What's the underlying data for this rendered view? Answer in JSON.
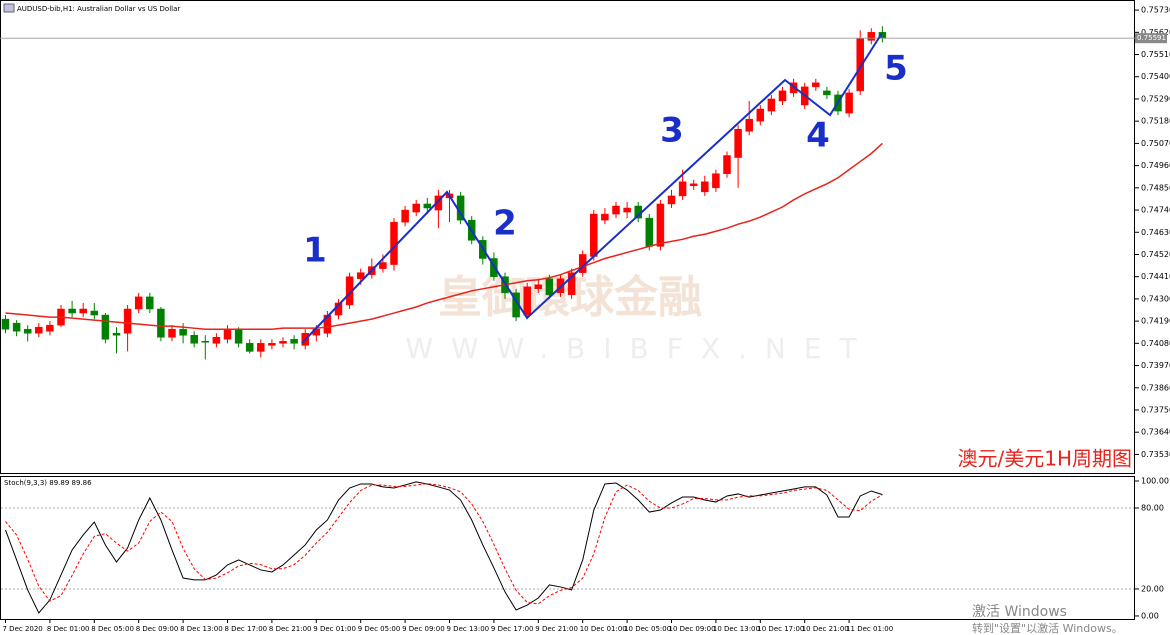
{
  "chart_data": [
    {
      "type": "candlestick",
      "title": "AUDUSD-bib,H1:  Australian Dollar vs US Dollar",
      "categories": [
        "7 Dec 2020",
        null,
        null,
        null,
        "8 Dec 01:00",
        null,
        null,
        null,
        "8 Dec 05:00",
        null,
        null,
        null,
        "8 Dec 09:00",
        null,
        null,
        null,
        "8 Dec 13:00",
        null,
        null,
        null,
        "8 Dec 17:00",
        null,
        null,
        null,
        "8 Dec 21:00",
        null,
        null,
        null,
        "9 Dec 01:00",
        null,
        null,
        null,
        "9 Dec 05:00",
        null,
        null,
        null,
        "9 Dec 09:00",
        null,
        null,
        null,
        "9 Dec 13:00",
        null,
        null,
        null,
        "9 Dec 17:00",
        null,
        null,
        null,
        "9 Dec 21:00",
        null,
        null,
        null,
        "10 Dec 01:00",
        null,
        null,
        null,
        "10 Dec 05:00",
        null,
        null,
        null,
        "10 Dec 09:00",
        null,
        null,
        null,
        "10 Dec 13:00",
        null,
        null,
        null,
        "10 Dec 17:00",
        null,
        null,
        null,
        "10 Dec 21:00",
        null,
        null,
        null,
        "11 Dec 01:00",
        null,
        null,
        null
      ],
      "open": [
        0.742,
        0.7418,
        0.7415,
        0.7413,
        0.7414,
        0.7417,
        0.7425,
        0.7423,
        0.7424,
        0.7422,
        0.7413,
        0.7413,
        0.7425,
        0.7431,
        0.7425,
        0.7411,
        0.7415,
        0.7412,
        0.7409,
        0.7408,
        0.741,
        0.7415,
        0.7408,
        0.7404,
        0.7407,
        0.7408,
        0.741,
        0.7407,
        0.7412,
        0.7413,
        0.7422,
        0.7427,
        0.744,
        0.7442,
        0.7445,
        0.7447,
        0.7468,
        0.7473,
        0.7477,
        0.7474,
        0.748,
        0.7481,
        0.7469,
        0.7459,
        0.745,
        0.7441,
        0.7433,
        0.7422,
        0.7435,
        0.744,
        0.7433,
        0.7432,
        0.7443,
        0.7451,
        0.7469,
        0.7472,
        0.7473,
        0.7476,
        0.747,
        0.7456,
        0.7477,
        0.7481,
        0.7486,
        0.7483,
        0.7485,
        0.7492,
        0.75,
        0.7513,
        0.7518,
        0.7523,
        0.7528,
        0.7532,
        0.7526,
        0.7535,
        0.7533,
        0.7531,
        0.7522,
        0.7533,
        0.7558,
        0.7562
      ],
      "high": [
        0.7422,
        0.74195,
        0.7417,
        0.7418,
        0.7419,
        0.7427,
        0.7429,
        0.7428,
        0.7428,
        0.7423,
        0.7416,
        0.7427,
        0.7433,
        0.7433,
        0.7426,
        0.7417,
        0.7418,
        0.7414,
        0.7412,
        0.7413,
        0.7417,
        0.7416,
        0.741,
        0.741,
        0.741,
        0.7411,
        0.7412,
        0.7415,
        0.7417,
        0.7424,
        0.743,
        0.7443,
        0.7445,
        0.745,
        0.7452,
        0.747,
        0.7476,
        0.7479,
        0.748,
        0.7484,
        0.7484,
        0.7483,
        0.7471,
        0.7461,
        0.7453,
        0.7443,
        0.7435,
        0.7438,
        0.744,
        0.7442,
        0.7442,
        0.7445,
        0.7454,
        0.7474,
        0.7475,
        0.7478,
        0.7478,
        0.7478,
        0.7472,
        0.7479,
        0.7484,
        0.7494,
        0.7489,
        0.7491,
        0.7494,
        0.7503,
        0.7516,
        0.7528,
        0.7526,
        0.7531,
        0.7535,
        0.7539,
        0.7537,
        0.7539,
        0.7535,
        0.7533,
        0.7534,
        0.7563,
        0.7564,
        0.7565
      ],
      "low": [
        0.7413,
        0.74115,
        0.7409,
        0.7411,
        0.7412,
        0.7416,
        0.7421,
        0.7421,
        0.742,
        0.7408,
        0.7403,
        0.7404,
        0.7423,
        0.7423,
        0.7409,
        0.7409,
        0.7408,
        0.7406,
        0.74,
        0.7406,
        0.7408,
        0.7406,
        0.7403,
        0.7401,
        0.7405,
        0.7406,
        0.7405,
        0.7405,
        0.7409,
        0.7411,
        0.742,
        0.7425,
        0.7437,
        0.744,
        0.7443,
        0.7444,
        0.7466,
        0.7471,
        0.7472,
        0.7465,
        0.7468,
        0.7467,
        0.7457,
        0.7447,
        0.7439,
        0.743,
        0.7419,
        0.742,
        0.7433,
        0.743,
        0.7431,
        0.743,
        0.7441,
        0.7449,
        0.7467,
        0.747,
        0.747,
        0.7468,
        0.7454,
        0.7454,
        0.7475,
        0.7479,
        0.7484,
        0.7481,
        0.7483,
        0.749,
        0.7485,
        0.7511,
        0.7516,
        0.7521,
        0.7526,
        0.753,
        0.7524,
        0.7533,
        0.7529,
        0.7521,
        0.752,
        0.7531,
        0.7556,
        0.7557
      ],
      "close": [
        0.7415,
        0.7414,
        0.7413,
        0.7416,
        0.7417,
        0.7425,
        0.7423,
        0.7425,
        0.7422,
        0.741,
        0.7412,
        0.7425,
        0.7431,
        0.7425,
        0.7411,
        0.7415,
        0.7412,
        0.7408,
        0.74085,
        0.7411,
        0.7415,
        0.7408,
        0.7404,
        0.7408,
        0.7408,
        0.7409,
        0.7408,
        0.7413,
        0.7415,
        0.7422,
        0.7428,
        0.7441,
        0.7443,
        0.7446,
        0.7448,
        0.7468,
        0.7474,
        0.7477,
        0.7475,
        0.7481,
        0.7482,
        0.7469,
        0.7459,
        0.745,
        0.7441,
        0.7433,
        0.7421,
        0.7436,
        0.7437,
        0.7432,
        0.744,
        0.7443,
        0.7452,
        0.7472,
        0.7472,
        0.7476,
        0.7475,
        0.747,
        0.7456,
        0.7477,
        0.7481,
        0.7488,
        0.7487,
        0.7488,
        0.7492,
        0.7501,
        0.7514,
        0.7519,
        0.7524,
        0.7529,
        0.7533,
        0.7537,
        0.7535,
        0.7537,
        0.7531,
        0.7523,
        0.7532,
        0.7559,
        0.7562,
        0.7559
      ],
      "up_color": "#ff0000",
      "down_color": "#008000",
      "ma": {
        "color": "#e8231c",
        "values": [
          0.7423,
          0.74225,
          0.7422,
          0.74215,
          0.7421,
          0.7421,
          0.74205,
          0.742,
          0.74195,
          0.7419,
          0.74185,
          0.7418,
          0.74175,
          0.7417,
          0.74165,
          0.74165,
          0.7416,
          0.74155,
          0.7415,
          0.7415,
          0.7415,
          0.7415,
          0.7415,
          0.7415,
          0.7415,
          0.74155,
          0.74155,
          0.74155,
          0.74155,
          0.7416,
          0.7417,
          0.7418,
          0.7419,
          0.742,
          0.74215,
          0.7423,
          0.74245,
          0.7426,
          0.7428,
          0.74295,
          0.7431,
          0.74325,
          0.7434,
          0.7435,
          0.7436,
          0.7437,
          0.7438,
          0.7439,
          0.74395,
          0.74405,
          0.7442,
          0.7444,
          0.7446,
          0.7448,
          0.745,
          0.74515,
          0.7453,
          0.74545,
          0.7456,
          0.74575,
          0.74585,
          0.74595,
          0.7461,
          0.7462,
          0.74635,
          0.7465,
          0.7467,
          0.74685,
          0.74705,
          0.7473,
          0.74755,
          0.7479,
          0.7482,
          0.74845,
          0.7487,
          0.749,
          0.7494,
          0.7498,
          0.7502,
          0.7507
        ]
      },
      "ylim": [
        0.73433,
        0.7578
      ],
      "yticks": [
        {
          "value": 0.7573,
          "label": "0.75730"
        },
        {
          "value": 0.7562,
          "label": "0.75620"
        },
        {
          "value": 0.7551,
          "label": "0.75510"
        },
        {
          "value": 0.754,
          "label": "0.75400"
        },
        {
          "value": 0.7529,
          "label": "0.75290"
        },
        {
          "value": 0.7518,
          "label": "0.75180"
        },
        {
          "value": 0.7507,
          "label": "0.75070"
        },
        {
          "value": 0.7496,
          "label": "0.74960"
        },
        {
          "value": 0.7485,
          "label": "0.74850"
        },
        {
          "value": 0.7474,
          "label": "0.74740"
        },
        {
          "value": 0.7463,
          "label": "0.74630"
        },
        {
          "value": 0.7452,
          "label": "0.74520"
        },
        {
          "value": 0.7441,
          "label": "0.74410"
        },
        {
          "value": 0.743,
          "label": "0.74300"
        },
        {
          "value": 0.7419,
          "label": "0.74190"
        },
        {
          "value": 0.7408,
          "label": "0.74080"
        },
        {
          "value": 0.7397,
          "label": "0.73970"
        },
        {
          "value": 0.7386,
          "label": "0.73860"
        },
        {
          "value": 0.7375,
          "label": "0.73750"
        },
        {
          "value": 0.7364,
          "label": "0.73640"
        },
        {
          "value": 0.7353,
          "label": "0.73530"
        }
      ],
      "current_price": 0.75591,
      "annotations": [
        "1",
        "2",
        "3",
        "4",
        "5"
      ],
      "caption": "澳元/美元1H周期图"
    },
    {
      "type": "line",
      "title": "Stoch(9,3,3) 89.89 89.86",
      "series": [
        {
          "color": "#000000",
          "values": [
            63.7,
            41.5,
            19.3,
            2.2,
            11.9,
            30.4,
            48.9,
            60,
            69.6,
            52.6,
            40,
            50.4,
            71.1,
            87.4,
            71.1,
            48.9,
            28.1,
            26.7,
            26.7,
            30.4,
            37.8,
            41.5,
            37.8,
            34.1,
            32.6,
            37.8,
            45.2,
            52.6,
            63.7,
            71.1,
            85.9,
            94.8,
            97.8,
            97.8,
            95.6,
            94.8,
            97,
            99.3,
            97.8,
            95.6,
            93.3,
            85.9,
            71.1,
            52.6,
            35.6,
            17.8,
            4.4,
            8.1,
            13.3,
            23,
            21.5,
            19.3,
            41.5,
            78.5,
            97.8,
            98.5,
            93.3,
            85.9,
            77,
            78.5,
            83.7,
            88.1,
            88.1,
            85.9,
            84.4,
            88.9,
            90.4,
            88.1,
            89.6,
            91.1,
            92.6,
            94.1,
            95.6,
            95.6,
            89.6,
            73.3,
            73.3,
            88.9,
            92.6,
            89.89
          ]
        },
        {
          "color": "#ff0000",
          "dashed": true,
          "values": [
            70,
            60,
            42,
            22,
            11,
            15,
            30,
            46,
            59,
            61,
            54,
            48,
            54,
            70,
            77,
            70,
            50,
            35,
            27,
            28,
            32,
            37,
            39,
            38,
            35,
            35,
            38,
            45,
            54,
            62,
            73,
            84,
            93,
            97,
            97,
            96,
            96,
            97,
            98,
            97,
            95,
            92,
            83,
            70,
            53,
            35,
            19,
            10,
            9,
            15,
            19,
            21,
            28,
            46,
            73,
            92,
            97,
            93,
            85,
            80,
            80,
            83,
            87,
            87,
            86,
            86,
            88,
            89,
            89,
            90,
            91,
            93,
            94,
            95,
            93,
            86,
            79,
            78,
            85,
            89.86
          ]
        }
      ],
      "ylim": [
        -3,
        103.7
      ],
      "yticks": [
        {
          "value": 100,
          "label": "100.00"
        },
        {
          "value": 80,
          "label": "80.00"
        },
        {
          "value": 20,
          "label": "20.00"
        },
        {
          "value": 0,
          "label": "0.00"
        }
      ],
      "levels": [
        80,
        20
      ]
    }
  ],
  "overlay": {
    "watermark_name": "皇御環球金融",
    "watermark_url": "WWW.BIBFX.NET",
    "windows_activate": "激活 Windows",
    "windows_hint": "转到\"设置\"以激活 Windows。"
  }
}
